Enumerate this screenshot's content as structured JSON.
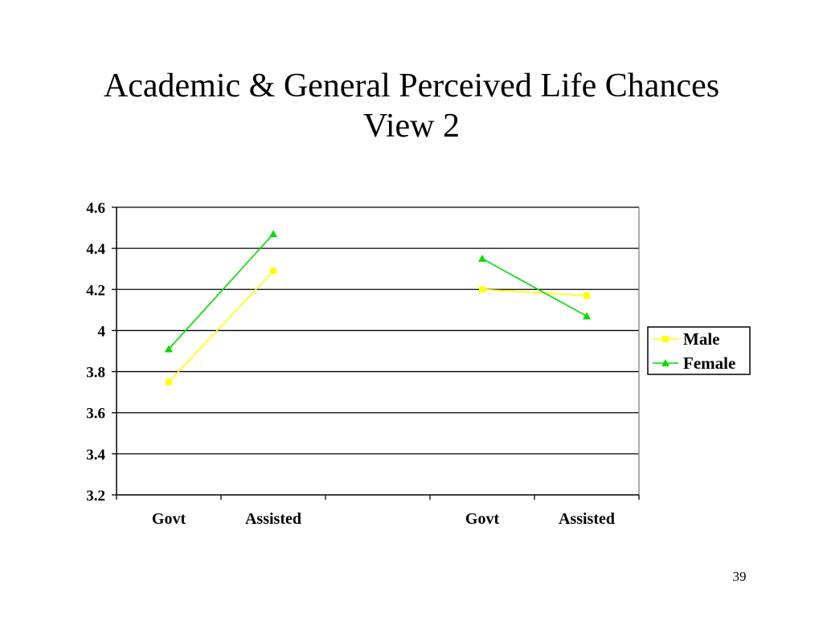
{
  "slide": {
    "title_line1": "Academic & General Perceived Life Chances",
    "title_line2": "View 2",
    "page_number": "39"
  },
  "chart_data": {
    "type": "line",
    "categories": [
      "Govt",
      "Assisted",
      "",
      "Govt",
      "Assisted"
    ],
    "ylim": [
      3.2,
      4.6
    ],
    "yticks": [
      3.2,
      3.4,
      3.6,
      3.8,
      4,
      4.2,
      4.4,
      4.6
    ],
    "grid": true,
    "legend_position": "right",
    "series": [
      {
        "name": "Male",
        "color": "#ffff00",
        "marker": "square",
        "values": [
          3.75,
          4.29,
          null,
          4.2,
          4.17
        ]
      },
      {
        "name": "Female",
        "color": "#00dd00",
        "marker": "triangle",
        "values": [
          3.91,
          4.47,
          null,
          4.35,
          4.07
        ]
      }
    ]
  }
}
